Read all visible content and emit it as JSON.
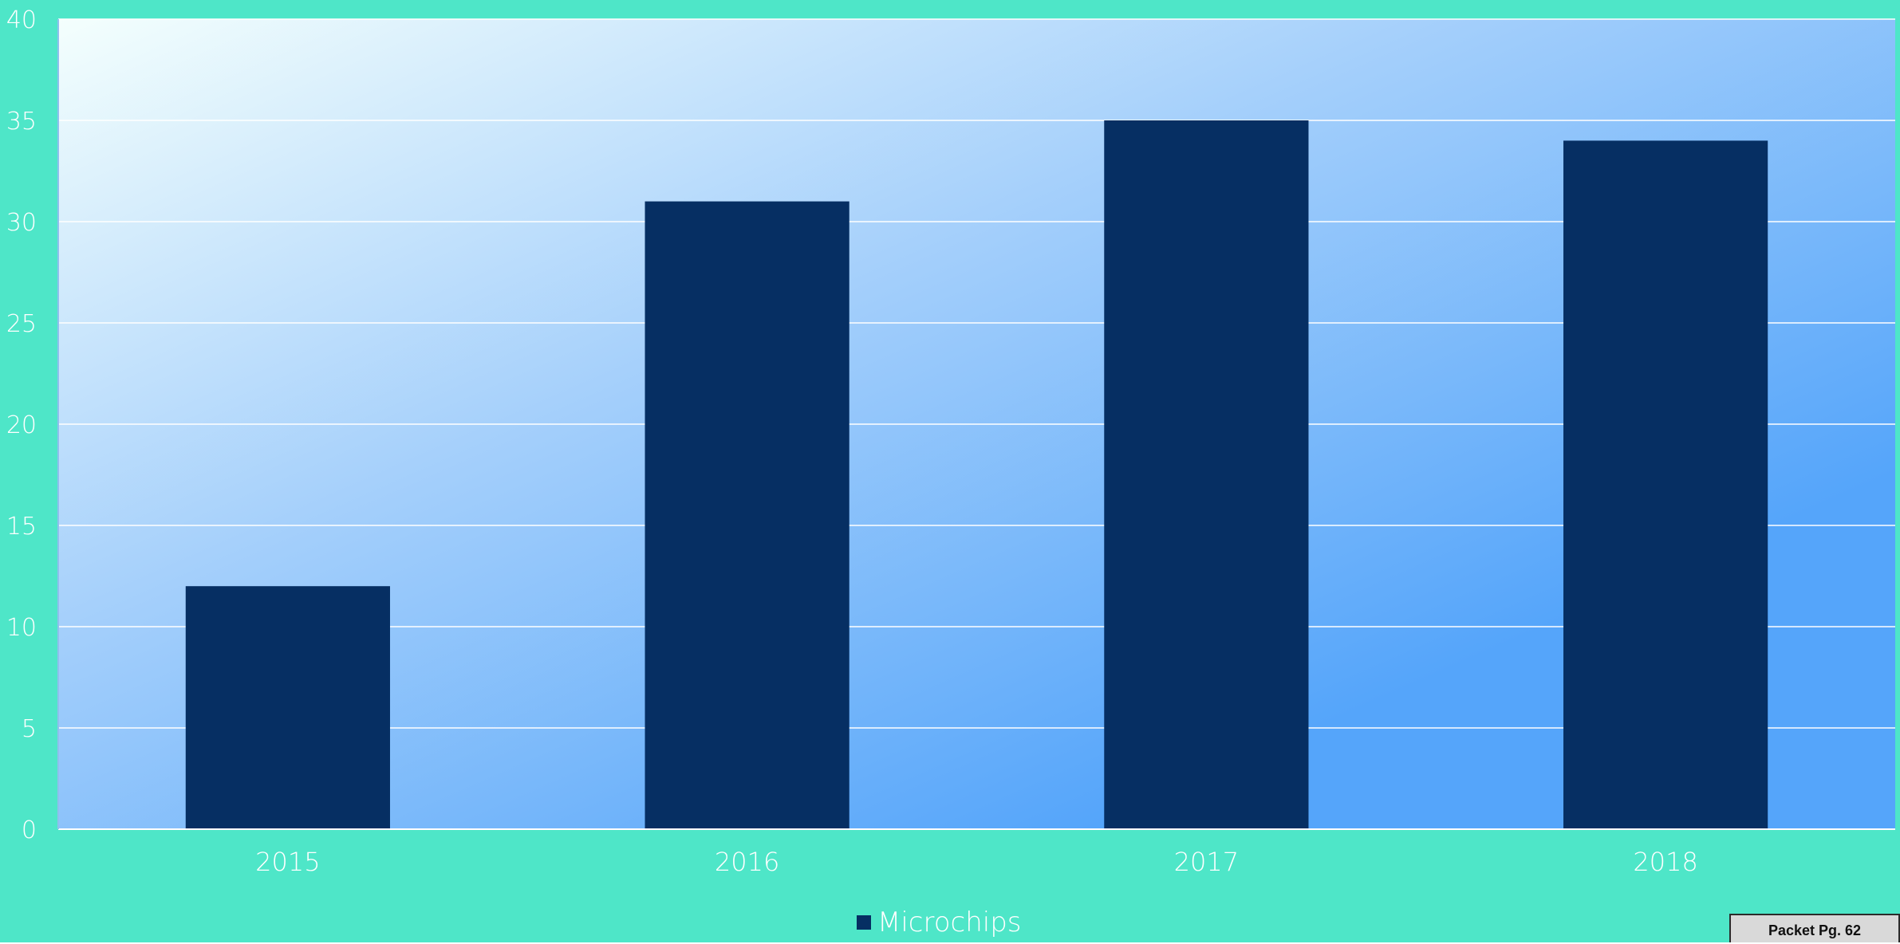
{
  "colors": {
    "page_background": "#4ee6c8",
    "plot_gradient_start": "#f4fffd",
    "plot_gradient_mid": "#a4cffb",
    "plot_gradient_end": "#55a5fa",
    "bar": "#062f63",
    "gridline": "#ffffff",
    "axis_text": "#ffffff"
  },
  "chart_data": {
    "type": "bar",
    "categories": [
      "2015",
      "2016",
      "2017",
      "2018"
    ],
    "series": [
      {
        "name": "Microchips",
        "values": [
          12,
          31,
          35,
          34
        ]
      }
    ],
    "title": "",
    "xlabel": "",
    "ylabel": "",
    "ylim": [
      0,
      40
    ],
    "yticks": [
      0,
      5,
      10,
      15,
      20,
      25,
      30,
      35,
      40
    ],
    "grid": true,
    "legend_position": "bottom"
  },
  "footer": {
    "packet_label": "Packet Pg. 62"
  }
}
